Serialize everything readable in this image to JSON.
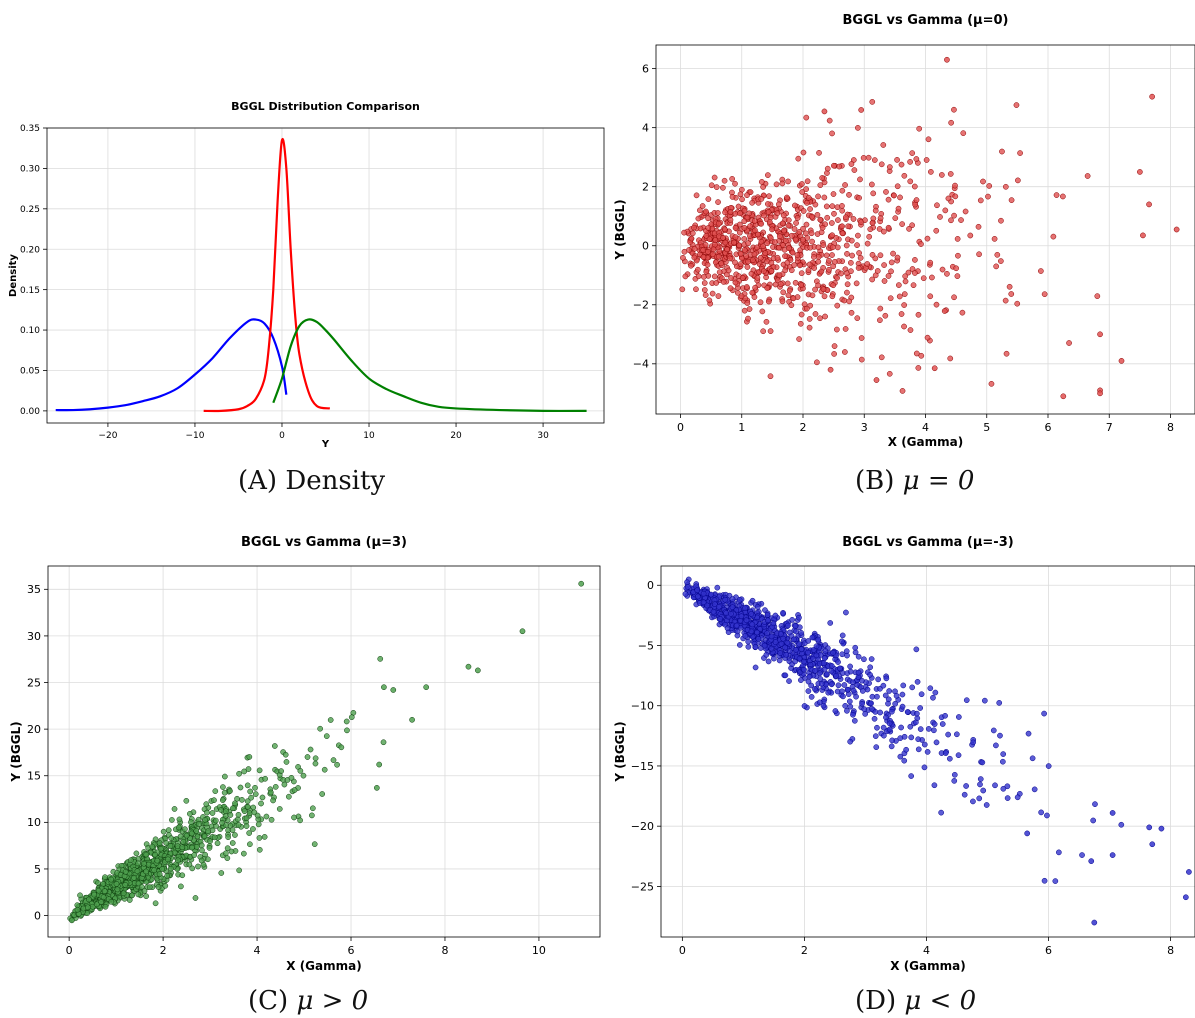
{
  "figure": {
    "captions": [
      {
        "label": "(A)",
        "text": "Density"
      },
      {
        "label": "(B)",
        "math": "μ = 0"
      },
      {
        "label": "(C)",
        "math": "μ > 0"
      },
      {
        "label": "(D)",
        "math": "μ < 0"
      }
    ]
  },
  "colors": {
    "red": "#ff0000",
    "blue": "#0000ff",
    "green": "#008000",
    "red_fill": "#e05050",
    "green_fill": "#4fa04f",
    "blue_fill": "#3333cc"
  },
  "chart_data": [
    {
      "type": "line",
      "title": "BGGL Distribution Comparison",
      "xlabel": "Y",
      "ylabel": "Density",
      "xlim": [
        -27,
        37
      ],
      "ylim": [
        -0.015,
        0.35
      ],
      "xticks": [
        -20,
        -10,
        0,
        10,
        20,
        30
      ],
      "yticks": [
        0.0,
        0.05,
        0.1,
        0.15,
        0.2,
        0.25,
        0.3,
        0.35
      ],
      "grid": true,
      "series": [
        {
          "color": "#0000ff",
          "x": [
            -26,
            -24,
            -22,
            -20,
            -18,
            -16,
            -14,
            -12,
            -10,
            -8,
            -6,
            -4,
            -3,
            -2,
            -1,
            0,
            0.5
          ],
          "y": [
            0.001,
            0.001,
            0.002,
            0.004,
            0.007,
            0.012,
            0.018,
            0.028,
            0.045,
            0.065,
            0.09,
            0.11,
            0.113,
            0.108,
            0.09,
            0.055,
            0.02
          ]
        },
        {
          "color": "#ff0000",
          "x": [
            -9,
            -7,
            -5,
            -4,
            -3,
            -2,
            -1.5,
            -1,
            -0.5,
            0,
            0.5,
            1,
            1.5,
            2,
            3,
            4,
            5.5
          ],
          "y": [
            0.0,
            0.0,
            0.002,
            0.006,
            0.015,
            0.04,
            0.08,
            0.15,
            0.26,
            0.335,
            0.3,
            0.2,
            0.12,
            0.07,
            0.025,
            0.006,
            0.003
          ]
        },
        {
          "color": "#008000",
          "x": [
            -1,
            0,
            1,
            2,
            3,
            4,
            5,
            6,
            8,
            10,
            12,
            14,
            16,
            18,
            20,
            25,
            30,
            35
          ],
          "y": [
            0.01,
            0.04,
            0.08,
            0.105,
            0.113,
            0.11,
            0.1,
            0.088,
            0.062,
            0.04,
            0.027,
            0.018,
            0.01,
            0.005,
            0.003,
            0.001,
            0.0,
            0.0
          ]
        }
      ]
    },
    {
      "type": "scatter",
      "title": "BGGL vs Gamma (μ=0)",
      "xlabel": "X (Gamma)",
      "ylabel": "Y (BGGL)",
      "xlim": [
        -0.4,
        8.4
      ],
      "ylim": [
        -5.7,
        6.8
      ],
      "xticks": [
        0,
        1,
        2,
        3,
        4,
        5,
        6,
        7,
        8
      ],
      "yticks": [
        -4,
        -2,
        0,
        2,
        4,
        6
      ],
      "grid": true,
      "n_points": 1000,
      "pattern": "symmetric spread around 0 widening with X",
      "highlights": [
        {
          "x": 4.35,
          "y": 6.3
        },
        {
          "x": 7.7,
          "y": 5.05
        },
        {
          "x": 8.1,
          "y": 0.55
        },
        {
          "x": 7.5,
          "y": 2.5
        },
        {
          "x": 7.65,
          "y": 1.4
        },
        {
          "x": 7.55,
          "y": 0.35
        },
        {
          "x": 7.2,
          "y": -3.9
        },
        {
          "x": 6.85,
          "y": -3.0
        },
        {
          "x": 6.85,
          "y": -4.9
        },
        {
          "x": 6.85,
          "y": -5.0
        },
        {
          "x": 6.25,
          "y": -5.1
        },
        {
          "x": 2.45,
          "y": -4.2
        },
        {
          "x": 3.2,
          "y": -4.55
        },
        {
          "x": 4.15,
          "y": -4.15
        },
        {
          "x": 2.95,
          "y": 4.6
        },
        {
          "x": 2.35,
          "y": 4.55
        }
      ]
    },
    {
      "type": "scatter",
      "title": "BGGL vs Gamma (μ=3)",
      "xlabel": "X (Gamma)",
      "ylabel": "Y (BGGL)",
      "xlim": [
        -0.45,
        11.3
      ],
      "ylim": [
        -2.3,
        37.5
      ],
      "xticks": [
        0,
        2,
        4,
        6,
        8,
        10
      ],
      "yticks": [
        0,
        5,
        10,
        15,
        20,
        25,
        30,
        35
      ],
      "grid": true,
      "n_points": 1000,
      "pattern": "positive linear trend, Y ≈ 3X",
      "highlights": [
        {
          "x": 10.9,
          "y": 35.6
        },
        {
          "x": 9.65,
          "y": 30.5
        },
        {
          "x": 8.5,
          "y": 26.7
        },
        {
          "x": 8.7,
          "y": 26.3
        },
        {
          "x": 7.6,
          "y": 24.5
        },
        {
          "x": 6.7,
          "y": 24.5
        },
        {
          "x": 6.9,
          "y": 24.2
        },
        {
          "x": 7.3,
          "y": 21.0
        },
        {
          "x": 6.55,
          "y": 13.7
        },
        {
          "x": 6.6,
          "y": 16.2
        }
      ]
    },
    {
      "type": "scatter",
      "title": "BGGL vs Gamma (μ=-3)",
      "xlabel": "X (Gamma)",
      "ylabel": "Y (BGGL)",
      "xlim": [
        -0.35,
        8.4
      ],
      "ylim": [
        -29.2,
        1.6
      ],
      "xticks": [
        0,
        2,
        4,
        6,
        8
      ],
      "yticks": [
        -25,
        -20,
        -15,
        -10,
        -5,
        0
      ],
      "grid": true,
      "n_points": 1000,
      "pattern": "negative linear trend, Y ≈ -3X",
      "highlights": [
        {
          "x": 6.75,
          "y": -28.0
        },
        {
          "x": 8.25,
          "y": -25.9
        },
        {
          "x": 8.3,
          "y": -23.8
        },
        {
          "x": 7.05,
          "y": -22.4
        },
        {
          "x": 6.7,
          "y": -22.9
        },
        {
          "x": 7.65,
          "y": -20.1
        },
        {
          "x": 7.85,
          "y": -20.2
        },
        {
          "x": 7.7,
          "y": -21.5
        },
        {
          "x": 7.05,
          "y": -18.9
        },
        {
          "x": 5.65,
          "y": -20.6
        }
      ]
    }
  ]
}
